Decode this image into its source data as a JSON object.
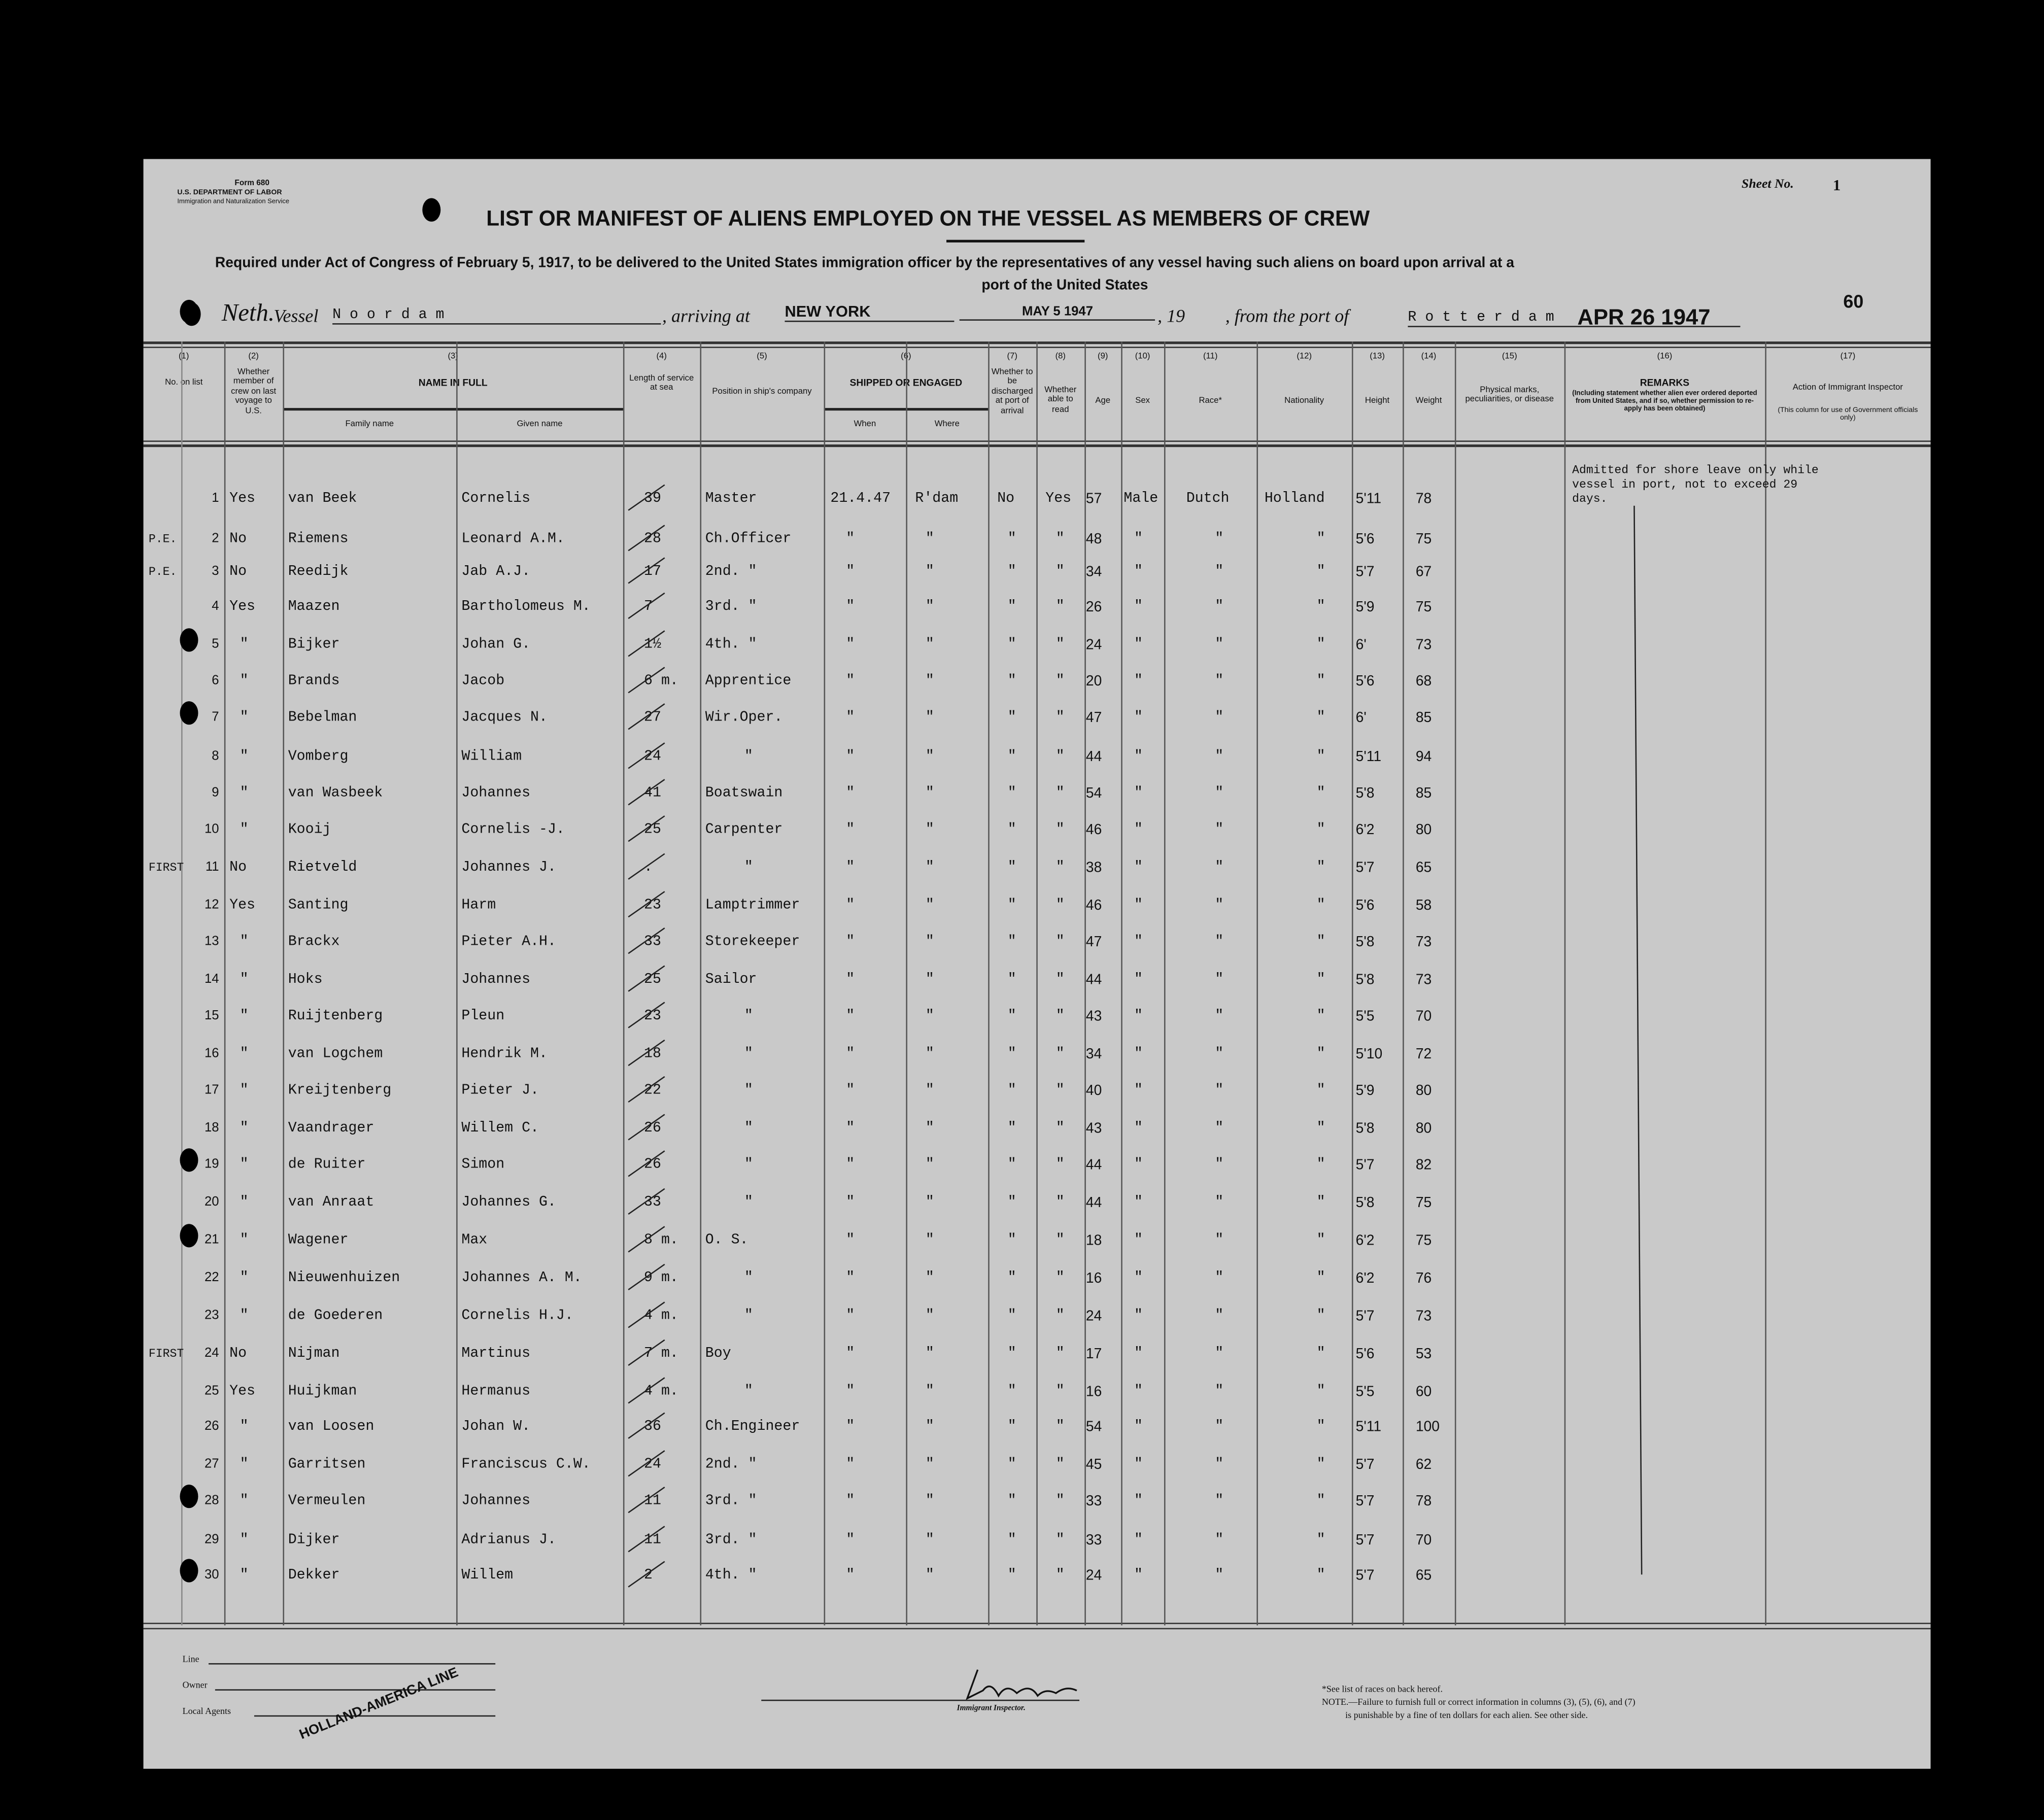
{
  "form": {
    "form_no": "Form 680",
    "department": "U.S. DEPARTMENT OF LABOR",
    "service": "Immigration and Naturalization Service",
    "sheet_label": "Sheet No.",
    "sheet_no": "1",
    "page_no": "60",
    "title": "LIST OR MANIFEST OF ALIENS EMPLOYED ON THE VESSEL AS MEMBERS OF CREW",
    "subtitle_1": "Required under Act of Congress of February 5, 1917, to be delivered to the United States immigration officer by the representatives of any vessel having such aliens on board upon arrival at a",
    "subtitle_2": "port of the United States"
  },
  "voyage": {
    "flag_handwritten": "Neth.",
    "vessel_label": "Vessel",
    "vessel": "N o o r d a m",
    "arriving_label": ", arriving at",
    "arrival_port": "NEW YORK",
    "arrival_date_stamp": "MAY 5 1947",
    "year_label": ", 19",
    "from_label": ", from the port of",
    "departure_port": "R o t t e r d a m",
    "departure_stamp": "APR 26 1947"
  },
  "columns": {
    "c1": {
      "num": "(1)",
      "label": "No. on list"
    },
    "c2": {
      "num": "(2)",
      "label": "Whether member of crew on last voyage to U.S."
    },
    "c3": {
      "num": "(3)",
      "label": "NAME IN FULL",
      "family": "Family name",
      "given": "Given name"
    },
    "c4": {
      "num": "(4)",
      "label": "Length of service at sea"
    },
    "c5": {
      "num": "(5)",
      "label": "Position in ship's company"
    },
    "c6": {
      "num": "(6)",
      "label": "SHIPPED OR ENGAGED",
      "when": "When",
      "where": "Where"
    },
    "c7": {
      "num": "(7)",
      "label": "Whether to be discharged at port of arrival"
    },
    "c8": {
      "num": "(8)",
      "label": "Whether able to read"
    },
    "c9": {
      "num": "(9)",
      "label": "Age"
    },
    "c10": {
      "num": "(10)",
      "label": "Sex"
    },
    "c11": {
      "num": "(11)",
      "label": "Race*"
    },
    "c12": {
      "num": "(12)",
      "label": "Nationality"
    },
    "c13": {
      "num": "(13)",
      "label": "Height"
    },
    "c14": {
      "num": "(14)",
      "label": "Weight"
    },
    "c15": {
      "num": "(15)",
      "label": "Physical marks, peculiarities, or disease"
    },
    "c16": {
      "num": "(16)",
      "label": "REMARKS",
      "note": "(Including statement whether alien ever ordered deported from United States, and if so, whether permission to re-apply has been obtained)"
    },
    "c17": {
      "num": "(17)",
      "label": "Action of Immigrant Inspector",
      "note": "(This column for use of Government officials only)"
    }
  },
  "remarks": "Admitted for shore leave only while vessel in port, not to exceed 29 days.",
  "rows": [
    {
      "no": "1",
      "mark": "",
      "member": "Yes",
      "family": "van Beek",
      "given": "Cornelis",
      "length": "39",
      "position": "Master",
      "when": "21.4.47",
      "where": "R'dam",
      "discharged": "No",
      "read": "Yes",
      "age": "57",
      "sex": "Male",
      "race": "Dutch",
      "nationality": "Holland",
      "height": "5'11",
      "weight": "78"
    },
    {
      "no": "2",
      "mark": "P.E.",
      "member": "No",
      "family": "Riemens",
      "given": "Leonard A.M.",
      "length": "28",
      "position": "Ch.Officer",
      "when": "\"",
      "where": "\"",
      "discharged": "\"",
      "read": "\"",
      "age": "48",
      "sex": "\"",
      "race": "\"",
      "nationality": "\"",
      "height": "5'6",
      "weight": "75"
    },
    {
      "no": "3",
      "mark": "P.E.",
      "member": "No",
      "family": "Reedijk",
      "given": "Jab A.J.",
      "length": "17",
      "position": "2nd. \"",
      "when": "\"",
      "where": "\"",
      "discharged": "\"",
      "read": "\"",
      "age": "34",
      "sex": "\"",
      "race": "\"",
      "nationality": "\"",
      "height": "5'7",
      "weight": "67"
    },
    {
      "no": "4",
      "mark": "",
      "member": "Yes",
      "family": "Maazen",
      "given": "Bartholomeus M.",
      "length": "7",
      "position": "3rd. \"",
      "when": "\"",
      "where": "\"",
      "discharged": "\"",
      "read": "\"",
      "age": "26",
      "sex": "\"",
      "race": "\"",
      "nationality": "\"",
      "height": "5'9",
      "weight": "75"
    },
    {
      "no": "5",
      "mark": "",
      "member": "\"",
      "family": "Bijker",
      "given": "Johan G.",
      "length": "1½",
      "position": "4th. \"",
      "when": "\"",
      "where": "\"",
      "discharged": "\"",
      "read": "\"",
      "age": "24",
      "sex": "\"",
      "race": "\"",
      "nationality": "\"",
      "height": "6'",
      "weight": "73"
    },
    {
      "no": "6",
      "mark": "",
      "member": "\"",
      "family": "Brands",
      "given": "Jacob",
      "length": "6 m.",
      "position": "Apprentice",
      "when": "\"",
      "where": "\"",
      "discharged": "\"",
      "read": "\"",
      "age": "20",
      "sex": "\"",
      "race": "\"",
      "nationality": "\"",
      "height": "5'6",
      "weight": "68"
    },
    {
      "no": "7",
      "mark": "",
      "member": "\"",
      "family": "Bebelman",
      "given": "Jacques N.",
      "length": "27",
      "position": "Wir.Oper.",
      "when": "\"",
      "where": "\"",
      "discharged": "\"",
      "read": "\"",
      "age": "47",
      "sex": "\"",
      "race": "\"",
      "nationality": "\"",
      "height": "6'",
      "weight": "85"
    },
    {
      "no": "8",
      "mark": "",
      "member": "\"",
      "family": "Vomberg",
      "given": "William",
      "length": "24",
      "position": "\"",
      "when": "\"",
      "where": "\"",
      "discharged": "\"",
      "read": "\"",
      "age": "44",
      "sex": "\"",
      "race": "\"",
      "nationality": "\"",
      "height": "5'11",
      "weight": "94"
    },
    {
      "no": "9",
      "mark": "",
      "member": "\"",
      "family": "van Wasbeek",
      "given": "Johannes",
      "length": "41",
      "position": "Boatswain",
      "when": "\"",
      "where": "\"",
      "discharged": "\"",
      "read": "\"",
      "age": "54",
      "sex": "\"",
      "race": "\"",
      "nationality": "\"",
      "height": "5'8",
      "weight": "85"
    },
    {
      "no": "10",
      "mark": "",
      "member": "\"",
      "family": "Kooij",
      "given": "Cornelis -J.",
      "length": "25",
      "position": "Carpenter",
      "when": "\"",
      "where": "\"",
      "discharged": "\"",
      "read": "\"",
      "age": "46",
      "sex": "\"",
      "race": "\"",
      "nationality": "\"",
      "height": "6'2",
      "weight": "80"
    },
    {
      "no": "11",
      "mark": "FIRST",
      "member": "No",
      "family": "Rietveld",
      "given": "Johannes J.",
      "length": ".",
      "position": "\"",
      "when": "\"",
      "where": "\"",
      "discharged": "\"",
      "read": "\"",
      "age": "38",
      "sex": "\"",
      "race": "\"",
      "nationality": "\"",
      "height": "5'7",
      "weight": "65"
    },
    {
      "no": "12",
      "mark": "",
      "member": "Yes",
      "family": "Santing",
      "given": "Harm",
      "length": "23",
      "position": "Lamptrimmer",
      "when": "\"",
      "where": "\"",
      "discharged": "\"",
      "read": "\"",
      "age": "46",
      "sex": "\"",
      "race": "\"",
      "nationality": "\"",
      "height": "5'6",
      "weight": "58"
    },
    {
      "no": "13",
      "mark": "",
      "member": "\"",
      "family": "Brackx",
      "given": "Pieter A.H.",
      "length": "33",
      "position": "Storekeeper",
      "when": "\"",
      "where": "\"",
      "discharged": "\"",
      "read": "\"",
      "age": "47",
      "sex": "\"",
      "race": "\"",
      "nationality": "\"",
      "height": "5'8",
      "weight": "73"
    },
    {
      "no": "14",
      "mark": "",
      "member": "\"",
      "family": "Hoks",
      "given": "Johannes",
      "length": "25",
      "position": "Sailor",
      "when": "\"",
      "where": "\"",
      "discharged": "\"",
      "read": "\"",
      "age": "44",
      "sex": "\"",
      "race": "\"",
      "nationality": "\"",
      "height": "5'8",
      "weight": "73"
    },
    {
      "no": "15",
      "mark": "",
      "member": "\"",
      "family": "Ruijtenberg",
      "given": "Pleun",
      "length": "23",
      "position": "\"",
      "when": "\"",
      "where": "\"",
      "discharged": "\"",
      "read": "\"",
      "age": "43",
      "sex": "\"",
      "race": "\"",
      "nationality": "\"",
      "height": "5'5",
      "weight": "70"
    },
    {
      "no": "16",
      "mark": "",
      "member": "\"",
      "family": "van Logchem",
      "given": "Hendrik M.",
      "length": "18",
      "position": "\"",
      "when": "\"",
      "where": "\"",
      "discharged": "\"",
      "read": "\"",
      "age": "34",
      "sex": "\"",
      "race": "\"",
      "nationality": "\"",
      "height": "5'10",
      "weight": "72"
    },
    {
      "no": "17",
      "mark": "",
      "member": "\"",
      "family": "Kreijtenberg",
      "given": "Pieter J.",
      "length": "22",
      "position": "\"",
      "when": "\"",
      "where": "\"",
      "discharged": "\"",
      "read": "\"",
      "age": "40",
      "sex": "\"",
      "race": "\"",
      "nationality": "\"",
      "height": "5'9",
      "weight": "80"
    },
    {
      "no": "18",
      "mark": "",
      "member": "\"",
      "family": "Vaandrager",
      "given": "Willem C.",
      "length": "26",
      "position": "\"",
      "when": "\"",
      "where": "\"",
      "discharged": "\"",
      "read": "\"",
      "age": "43",
      "sex": "\"",
      "race": "\"",
      "nationality": "\"",
      "height": "5'8",
      "weight": "80"
    },
    {
      "no": "19",
      "mark": "",
      "member": "\"",
      "family": "de Ruiter",
      "given": "Simon",
      "length": "26",
      "position": "\"",
      "when": "\"",
      "where": "\"",
      "discharged": "\"",
      "read": "\"",
      "age": "44",
      "sex": "\"",
      "race": "\"",
      "nationality": "\"",
      "height": "5'7",
      "weight": "82"
    },
    {
      "no": "20",
      "mark": "",
      "member": "\"",
      "family": "van Anraat",
      "given": "Johannes G.",
      "length": "33",
      "position": "\"",
      "when": "\"",
      "where": "\"",
      "discharged": "\"",
      "read": "\"",
      "age": "44",
      "sex": "\"",
      "race": "\"",
      "nationality": "\"",
      "height": "5'8",
      "weight": "75"
    },
    {
      "no": "21",
      "mark": "",
      "member": "\"",
      "family": "Wagener",
      "given": "Max",
      "length": "8 m.",
      "position": "O. S.",
      "when": "\"",
      "where": "\"",
      "discharged": "\"",
      "read": "\"",
      "age": "18",
      "sex": "\"",
      "race": "\"",
      "nationality": "\"",
      "height": "6'2",
      "weight": "75"
    },
    {
      "no": "22",
      "mark": "",
      "member": "\"",
      "family": "Nieuwenhuizen",
      "given": "Johannes A. M.",
      "length": "9 m.",
      "position": "\"",
      "when": "\"",
      "where": "\"",
      "discharged": "\"",
      "read": "\"",
      "age": "16",
      "sex": "\"",
      "race": "\"",
      "nationality": "\"",
      "height": "6'2",
      "weight": "76"
    },
    {
      "no": "23",
      "mark": "",
      "member": "\"",
      "family": "de Goederen",
      "given": "Cornelis H.J.",
      "length": "4 m.",
      "position": "\"",
      "when": "\"",
      "where": "\"",
      "discharged": "\"",
      "read": "\"",
      "age": "24",
      "sex": "\"",
      "race": "\"",
      "nationality": "\"",
      "height": "5'7",
      "weight": "73"
    },
    {
      "no": "24",
      "mark": "FIRST",
      "member": "No",
      "family": "Nijman",
      "given": "Martinus",
      "length": "7 m.",
      "position": "Boy",
      "when": "\"",
      "where": "\"",
      "discharged": "\"",
      "read": "\"",
      "age": "17",
      "sex": "\"",
      "race": "\"",
      "nationality": "\"",
      "height": "5'6",
      "weight": "53"
    },
    {
      "no": "25",
      "mark": "",
      "member": "Yes",
      "family": "Huijkman",
      "given": "Hermanus",
      "length": "4 m.",
      "position": "\"",
      "when": "\"",
      "where": "\"",
      "discharged": "\"",
      "read": "\"",
      "age": "16",
      "sex": "\"",
      "race": "\"",
      "nationality": "\"",
      "height": "5'5",
      "weight": "60"
    },
    {
      "no": "26",
      "mark": "",
      "member": "\"",
      "family": "van Loosen",
      "given": "Johan W.",
      "length": "36",
      "position": "Ch.Engineer",
      "when": "\"",
      "where": "\"",
      "discharged": "\"",
      "read": "\"",
      "age": "54",
      "sex": "\"",
      "race": "\"",
      "nationality": "\"",
      "height": "5'11",
      "weight": "100"
    },
    {
      "no": "27",
      "mark": "",
      "member": "\"",
      "family": "Garritsen",
      "given": "Franciscus C.W.",
      "length": "24",
      "position": "2nd. \"",
      "when": "\"",
      "where": "\"",
      "discharged": "\"",
      "read": "\"",
      "age": "45",
      "sex": "\"",
      "race": "\"",
      "nationality": "\"",
      "height": "5'7",
      "weight": "62"
    },
    {
      "no": "28",
      "mark": "",
      "member": "\"",
      "family": "Vermeulen",
      "given": "Johannes",
      "length": "11",
      "position": "3rd. \"",
      "when": "\"",
      "where": "\"",
      "discharged": "\"",
      "read": "\"",
      "age": "33",
      "sex": "\"",
      "race": "\"",
      "nationality": "\"",
      "height": "5'7",
      "weight": "78"
    },
    {
      "no": "29",
      "mark": "",
      "member": "\"",
      "family": "Dijker",
      "given": "Adrianus J.",
      "length": "11",
      "position": "3rd. \"",
      "when": "\"",
      "where": "\"",
      "discharged": "\"",
      "read": "\"",
      "age": "33",
      "sex": "\"",
      "race": "\"",
      "nationality": "\"",
      "height": "5'7",
      "weight": "70"
    },
    {
      "no": "30",
      "mark": "",
      "member": "\"",
      "family": "Dekker",
      "given": "Willem",
      "length": "2",
      "position": "4th. \"",
      "when": "\"",
      "where": "\"",
      "discharged": "\"",
      "read": "\"",
      "age": "24",
      "sex": "\"",
      "race": "\"",
      "nationality": "\"",
      "height": "5'7",
      "weight": "65"
    }
  ],
  "footer": {
    "line_label": "Line",
    "owner_label": "Owner",
    "agents_label": "Local Agents",
    "company_stamp": "HOLLAND-AMERICA LINE",
    "inspector_label": "Immigrant Inspector.",
    "races_note": "*See list of races on back hereof.",
    "note_1": "NOTE.—Failure to furnish full or correct information in columns (3), (5), (6), and (7)",
    "note_2": "is punishable by a fine of ten dollars for each alien.   See other side."
  }
}
